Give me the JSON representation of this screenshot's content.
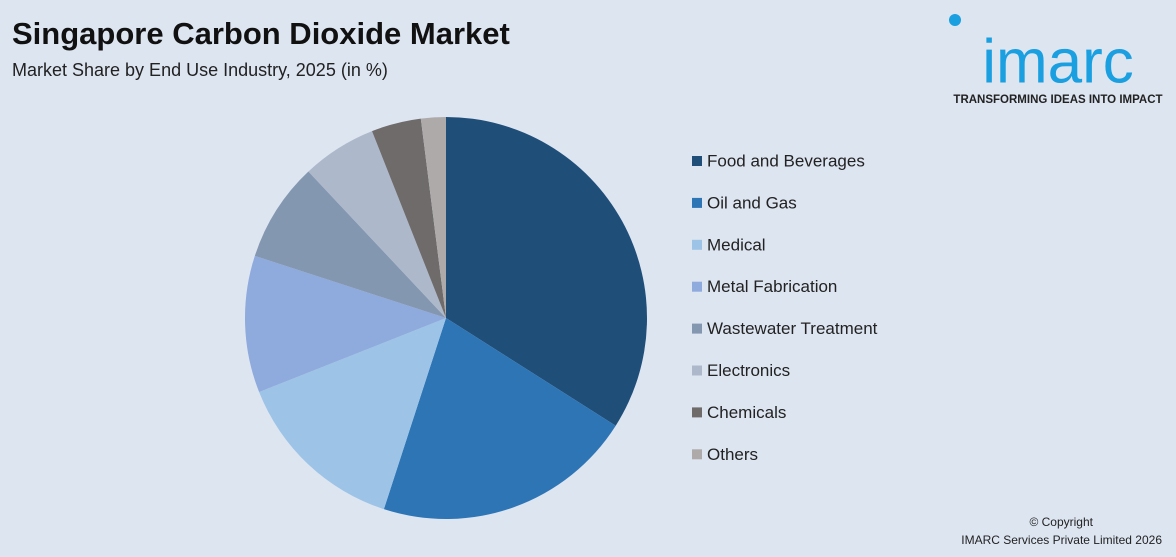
{
  "chart_data": {
    "type": "pie",
    "title": "Singapore Carbon Dioxide Market",
    "subtitle": "Market Share by End Use Industry, 2025 (in %)",
    "categories": [
      "Food and Beverages",
      "Oil and Gas",
      "Medical",
      "Metal Fabrication",
      "Wastewater Treatment",
      "Electronics",
      "Chemicals",
      "Others"
    ],
    "values": [
      34,
      21,
      14,
      11,
      8,
      6,
      4,
      2
    ],
    "colors": [
      "#1f4e79",
      "#2e75b6",
      "#9dc3e6",
      "#8faadc",
      "#8497b0",
      "#adb9ca",
      "#6f6b6b",
      "#aeaaaa"
    ],
    "legend": "right"
  },
  "logo": {
    "name": "imarc",
    "tagline": "TRANSFORMING IDEAS INTO IMPACT"
  },
  "footer": {
    "copyright": "© Copyright",
    "owner": "IMARC Services Private Limited 2026"
  }
}
